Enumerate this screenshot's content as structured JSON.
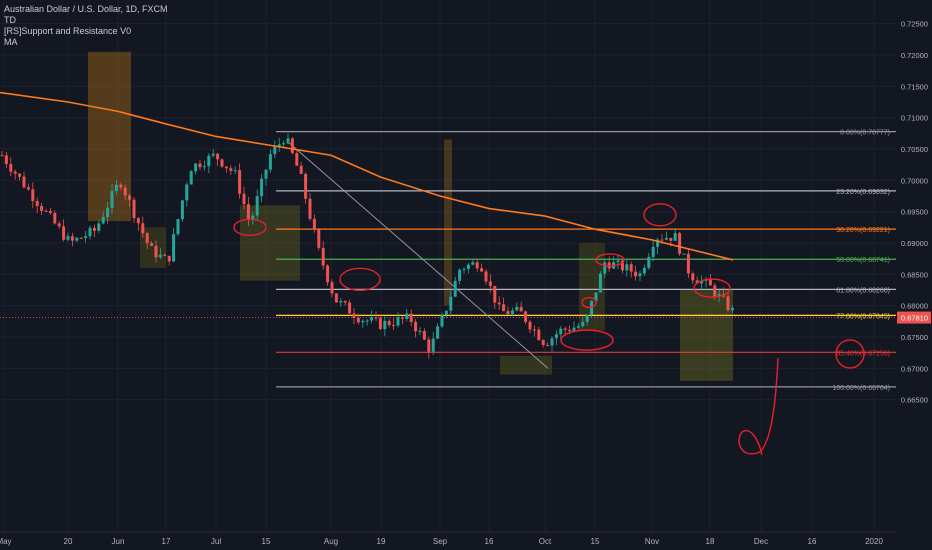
{
  "window": {
    "title": "Australian Dollar / U.S. Dollar, 1D, FXCM",
    "studies": [
      "TD",
      "[RS]Support and Resistance V0",
      "MA"
    ]
  },
  "colors": {
    "background": "#131722",
    "up": "#26a69a",
    "down": "#ef5350",
    "ma": "#ff7a1a",
    "pencil": "#e8212b",
    "price_tag": "#ef5350",
    "grid": "#1e2230",
    "axis_text": "#b2b5be"
  },
  "chart_data": {
    "type": "candlestick",
    "symbol": "AUDUSD",
    "timeframe": "1D",
    "ylim": [
      0.645,
      0.7275
    ],
    "y_ticks": [
      "0.72500",
      "0.72000",
      "0.71500",
      "0.71000",
      "0.70500",
      "0.70000",
      "0.69500",
      "0.69000",
      "0.68500",
      "0.68000",
      "0.67500",
      "0.67000",
      "0.66500"
    ],
    "x_ticks": [
      "May",
      "20",
      "Jun",
      "17",
      "Jul",
      "15",
      "Aug",
      "19",
      "Sep",
      "16",
      "Oct",
      "15",
      "Nov",
      "18",
      "Dec",
      "16",
      "2020"
    ],
    "last_price": "0.67810",
    "fibonacci": [
      {
        "label": "0.00%(0.70777)",
        "value": 0.70777,
        "color": "#9598a1"
      },
      {
        "label": "23.20%(0.69832)",
        "value": 0.69832,
        "color": "#b2b5be"
      },
      {
        "label": "38.20%(0.69221)",
        "value": 0.69221,
        "color": "#ff7a1a"
      },
      {
        "label": "50.00%(0.68741)",
        "value": 0.68741,
        "color": "#4caf50"
      },
      {
        "label": "61.80%(0.68260)",
        "value": 0.6826,
        "color": "#b2b5be"
      },
      {
        "label": "77.00%(0.67845)",
        "value": 0.67845,
        "color": "#fdd835"
      },
      {
        "label": "85.40%(0.67256)",
        "value": 0.67256,
        "color": "#e53935"
      },
      {
        "label": "100.00%(0.66704)",
        "value": 0.66704,
        "color": "#9598a1"
      }
    ],
    "moving_average": [
      {
        "x": "May",
        "y": 0.714
      },
      {
        "x": "20",
        "y": 0.7125
      },
      {
        "x": "Jun",
        "y": 0.711
      },
      {
        "x": "17",
        "y": 0.709
      },
      {
        "x": "Jul",
        "y": 0.707
      },
      {
        "x": "15",
        "y": 0.7057
      },
      {
        "x": "Aug",
        "y": 0.704
      },
      {
        "x": "19",
        "y": 0.7005
      },
      {
        "x": "Sep",
        "y": 0.6975
      },
      {
        "x": "16",
        "y": 0.6955
      },
      {
        "x": "Oct",
        "y": 0.6943
      },
      {
        "x": "15",
        "y": 0.6922
      },
      {
        "x": "Nov",
        "y": 0.6905
      },
      {
        "x": "18",
        "y": 0.6873
      }
    ]
  }
}
